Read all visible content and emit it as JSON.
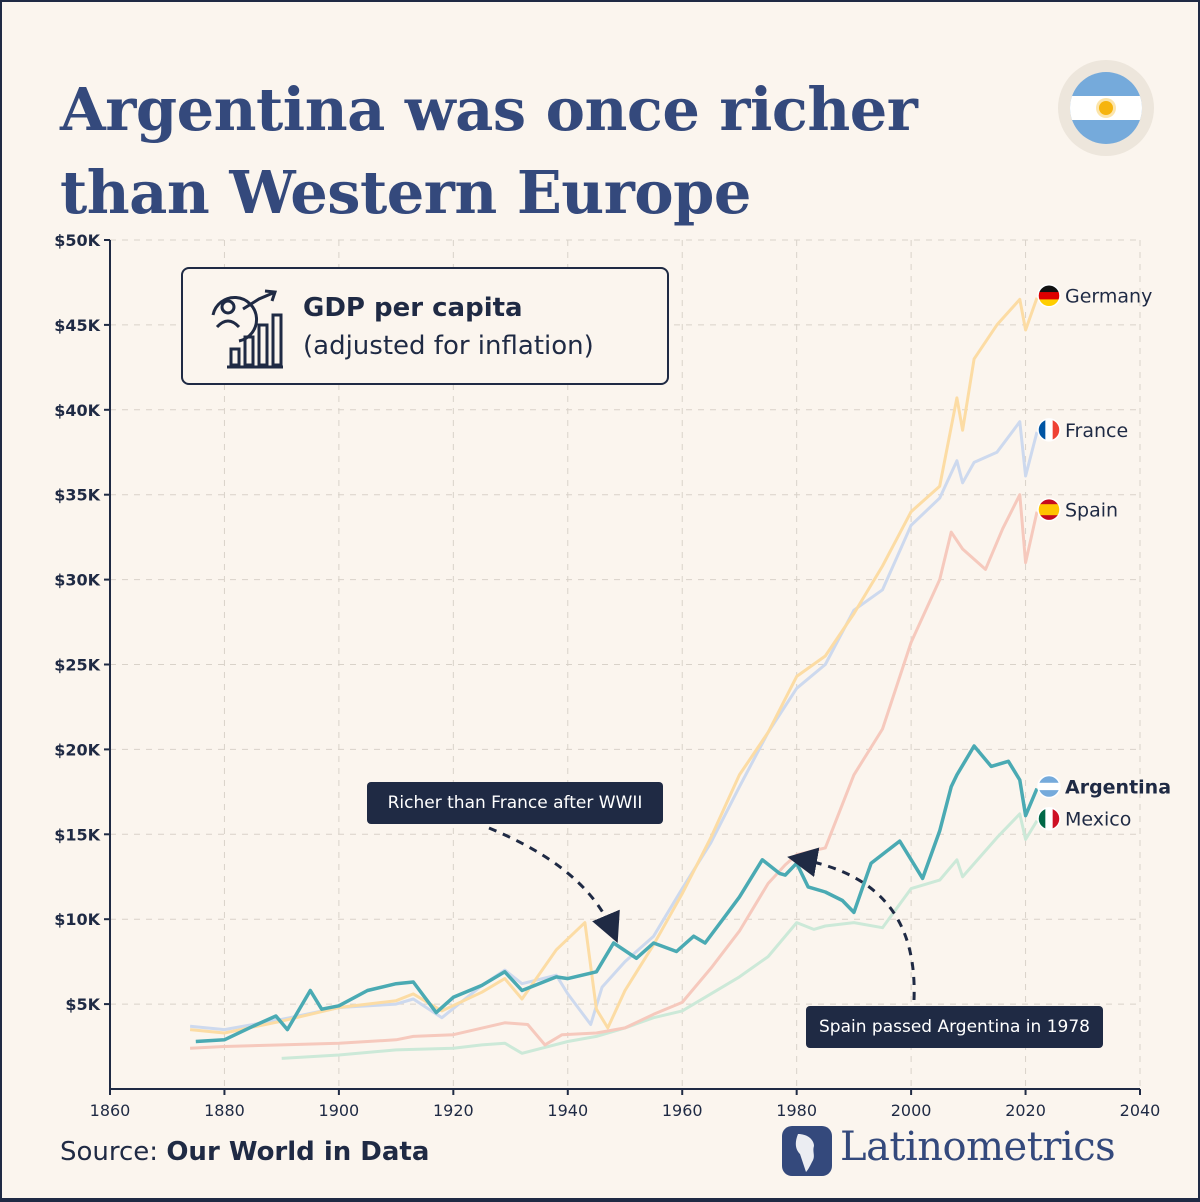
{
  "title": {
    "line1": "Argentina was once richer",
    "line2": "than Western Europe"
  },
  "legend": {
    "title": "GDP per capita",
    "subtitle": "(adjusted for inflation)",
    "icon": "gdp-growth-icon"
  },
  "annotations": {
    "france": "Richer than France after WWII",
    "spain": "Spain passed Argentina in 1978"
  },
  "footer": {
    "source_prefix": "Source:",
    "source_name": "Our World in Data",
    "brand": "Latinometrics"
  },
  "colors": {
    "background": "#fbf5ee",
    "title": "#34497c",
    "dark": "#1f2a44",
    "Argentina": "#4aaab3",
    "Germany": "#fcdca4",
    "France": "#cdd9ee",
    "Spain": "#f6c9bd",
    "Mexico": "#cce9d8"
  },
  "chart_data": {
    "type": "line",
    "xlim": [
      1860,
      2040
    ],
    "ylim": [
      0,
      50000
    ],
    "x_ticks": [
      "1860",
      "1880",
      "1900",
      "1920",
      "1940",
      "1960",
      "1980",
      "2000",
      "2020",
      "2040"
    ],
    "y_ticks": [
      "$5K",
      "$10K",
      "$15K",
      "$20K",
      "$25K",
      "$30K",
      "$35K",
      "$40K",
      "$45K",
      "$50K"
    ],
    "grid": true,
    "series": [
      {
        "name": "Germany",
        "points": [
          [
            1874,
            3500
          ],
          [
            1880,
            3300
          ],
          [
            1890,
            4000
          ],
          [
            1900,
            4800
          ],
          [
            1910,
            5200
          ],
          [
            1913,
            5600
          ],
          [
            1918,
            4600
          ],
          [
            1925,
            5700
          ],
          [
            1929,
            6500
          ],
          [
            1932,
            5300
          ],
          [
            1938,
            8200
          ],
          [
            1943,
            9800
          ],
          [
            1945,
            4700
          ],
          [
            1947,
            3600
          ],
          [
            1950,
            5800
          ],
          [
            1955,
            8500
          ],
          [
            1960,
            11500
          ],
          [
            1965,
            14800
          ],
          [
            1970,
            18500
          ],
          [
            1975,
            21000
          ],
          [
            1980,
            24300
          ],
          [
            1985,
            25500
          ],
          [
            1990,
            28000
          ],
          [
            1995,
            30800
          ],
          [
            2000,
            34000
          ],
          [
            2005,
            35500
          ],
          [
            2008,
            40700
          ],
          [
            2009,
            38800
          ],
          [
            2011,
            43000
          ],
          [
            2015,
            45000
          ],
          [
            2019,
            46500
          ],
          [
            2020,
            44700
          ],
          [
            2022,
            46600
          ]
        ]
      },
      {
        "name": "France",
        "points": [
          [
            1874,
            3700
          ],
          [
            1880,
            3500
          ],
          [
            1890,
            4100
          ],
          [
            1900,
            4800
          ],
          [
            1910,
            5000
          ],
          [
            1913,
            5300
          ],
          [
            1918,
            4200
          ],
          [
            1925,
            6100
          ],
          [
            1929,
            7000
          ],
          [
            1932,
            6200
          ],
          [
            1938,
            6700
          ],
          [
            1940,
            5600
          ],
          [
            1944,
            3800
          ],
          [
            1946,
            6000
          ],
          [
            1950,
            7500
          ],
          [
            1955,
            9000
          ],
          [
            1960,
            11800
          ],
          [
            1965,
            14500
          ],
          [
            1970,
            17800
          ],
          [
            1975,
            21000
          ],
          [
            1980,
            23600
          ],
          [
            1985,
            25000
          ],
          [
            1990,
            28200
          ],
          [
            1995,
            29400
          ],
          [
            2000,
            33200
          ],
          [
            2005,
            34800
          ],
          [
            2008,
            37000
          ],
          [
            2009,
            35700
          ],
          [
            2011,
            36900
          ],
          [
            2015,
            37500
          ],
          [
            2019,
            39300
          ],
          [
            2020,
            36100
          ],
          [
            2022,
            38700
          ]
        ]
      },
      {
        "name": "Spain",
        "points": [
          [
            1874,
            2400
          ],
          [
            1880,
            2500
          ],
          [
            1890,
            2600
          ],
          [
            1900,
            2700
          ],
          [
            1910,
            2900
          ],
          [
            1913,
            3100
          ],
          [
            1920,
            3200
          ],
          [
            1929,
            3900
          ],
          [
            1933,
            3800
          ],
          [
            1936,
            2600
          ],
          [
            1939,
            3200
          ],
          [
            1945,
            3300
          ],
          [
            1950,
            3600
          ],
          [
            1955,
            4400
          ],
          [
            1960,
            5100
          ],
          [
            1965,
            7100
          ],
          [
            1970,
            9300
          ],
          [
            1975,
            12100
          ],
          [
            1978,
            13200
          ],
          [
            1980,
            13800
          ],
          [
            1985,
            14200
          ],
          [
            1990,
            18500
          ],
          [
            1995,
            21200
          ],
          [
            2000,
            26300
          ],
          [
            2005,
            30000
          ],
          [
            2007,
            32800
          ],
          [
            2009,
            31800
          ],
          [
            2013,
            30600
          ],
          [
            2016,
            33000
          ],
          [
            2019,
            35000
          ],
          [
            2020,
            31000
          ],
          [
            2022,
            34000
          ]
        ]
      },
      {
        "name": "Argentina",
        "points": [
          [
            1875,
            2800
          ],
          [
            1880,
            2900
          ],
          [
            1885,
            3700
          ],
          [
            1889,
            4300
          ],
          [
            1891,
            3500
          ],
          [
            1895,
            5800
          ],
          [
            1897,
            4700
          ],
          [
            1900,
            4900
          ],
          [
            1905,
            5800
          ],
          [
            1910,
            6200
          ],
          [
            1913,
            6300
          ],
          [
            1917,
            4500
          ],
          [
            1920,
            5400
          ],
          [
            1925,
            6100
          ],
          [
            1929,
            6900
          ],
          [
            1932,
            5800
          ],
          [
            1938,
            6600
          ],
          [
            1940,
            6500
          ],
          [
            1945,
            6900
          ],
          [
            1948,
            8600
          ],
          [
            1952,
            7700
          ],
          [
            1955,
            8600
          ],
          [
            1959,
            8100
          ],
          [
            1962,
            9000
          ],
          [
            1964,
            8600
          ],
          [
            1968,
            10400
          ],
          [
            1970,
            11300
          ],
          [
            1974,
            13500
          ],
          [
            1977,
            12700
          ],
          [
            1978,
            12600
          ],
          [
            1980,
            13300
          ],
          [
            1982,
            11900
          ],
          [
            1985,
            11600
          ],
          [
            1988,
            11100
          ],
          [
            1990,
            10400
          ],
          [
            1993,
            13300
          ],
          [
            1998,
            14600
          ],
          [
            2002,
            12400
          ],
          [
            2005,
            15200
          ],
          [
            2007,
            17800
          ],
          [
            2008,
            18500
          ],
          [
            2011,
            20200
          ],
          [
            2014,
            19000
          ],
          [
            2017,
            19300
          ],
          [
            2019,
            18200
          ],
          [
            2020,
            16100
          ],
          [
            2022,
            17700
          ]
        ]
      },
      {
        "name": "Mexico",
        "points": [
          [
            1890,
            1800
          ],
          [
            1900,
            2000
          ],
          [
            1910,
            2300
          ],
          [
            1920,
            2400
          ],
          [
            1925,
            2600
          ],
          [
            1929,
            2700
          ],
          [
            1932,
            2100
          ],
          [
            1940,
            2800
          ],
          [
            1945,
            3100
          ],
          [
            1950,
            3600
          ],
          [
            1955,
            4200
          ],
          [
            1960,
            4600
          ],
          [
            1965,
            5600
          ],
          [
            1970,
            6600
          ],
          [
            1975,
            7800
          ],
          [
            1980,
            9800
          ],
          [
            1983,
            9400
          ],
          [
            1985,
            9600
          ],
          [
            1990,
            9800
          ],
          [
            1995,
            9500
          ],
          [
            2000,
            11800
          ],
          [
            2005,
            12300
          ],
          [
            2008,
            13500
          ],
          [
            2009,
            12500
          ],
          [
            2015,
            14800
          ],
          [
            2019,
            16200
          ],
          [
            2020,
            14700
          ],
          [
            2022,
            15800
          ]
        ]
      }
    ],
    "end_labels": [
      "Germany",
      "France",
      "Spain",
      "Argentina",
      "Mexico"
    ]
  }
}
